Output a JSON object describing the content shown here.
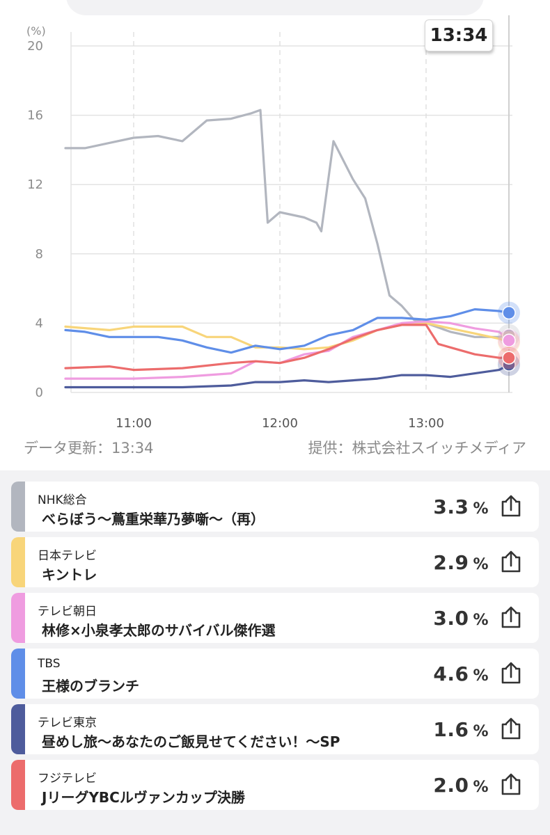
{
  "badge_time": "13:34",
  "footer": {
    "updated": "データ更新：13:34",
    "provider": "提供：株式会社スイッチメディア"
  },
  "chart_data": {
    "type": "line",
    "yunit": "(%)",
    "ylim": [
      0,
      20
    ],
    "yticks": [
      "0",
      "4",
      "8",
      "12",
      "16",
      "20"
    ],
    "xticks": [
      "11:00",
      "12:00",
      "13:00"
    ],
    "grid": true,
    "series": [
      {
        "name": "NHK総合",
        "color": "#b2b6bf",
        "x": [
          "10:32",
          "10:40",
          "10:50",
          "11:00",
          "11:10",
          "11:20",
          "11:30",
          "11:40",
          "11:48",
          "11:52",
          "11:55",
          "12:00",
          "12:10",
          "12:15",
          "12:17",
          "12:22",
          "12:30",
          "12:35",
          "12:40",
          "12:45",
          "12:50",
          "12:55",
          "13:00",
          "13:10",
          "13:20",
          "13:30",
          "13:34"
        ],
        "y": [
          14.1,
          14.1,
          14.4,
          14.7,
          14.8,
          14.5,
          15.7,
          15.8,
          16.1,
          16.3,
          9.8,
          10.4,
          10.1,
          9.8,
          9.3,
          14.5,
          12.3,
          11.2,
          8.6,
          5.6,
          5.0,
          4.2,
          4.0,
          3.5,
          3.2,
          3.2,
          3.3
        ]
      },
      {
        "name": "日本テレビ",
        "color": "#f8d57a",
        "x": [
          "10:32",
          "10:50",
          "11:00",
          "11:10",
          "11:20",
          "11:30",
          "11:40",
          "11:50",
          "12:00",
          "12:10",
          "12:20",
          "12:30",
          "12:40",
          "12:50",
          "13:00",
          "13:10",
          "13:20",
          "13:30",
          "13:34"
        ],
        "y": [
          3.8,
          3.6,
          3.8,
          3.8,
          3.8,
          3.2,
          3.2,
          2.6,
          2.6,
          2.5,
          2.6,
          3.0,
          3.6,
          3.9,
          4.0,
          3.7,
          3.4,
          3.1,
          2.9
        ]
      },
      {
        "name": "テレビ朝日",
        "color": "#ef9ce0",
        "x": [
          "10:32",
          "10:50",
          "11:00",
          "11:20",
          "11:40",
          "11:50",
          "12:00",
          "12:10",
          "12:20",
          "12:30",
          "12:40",
          "12:50",
          "13:00",
          "13:10",
          "13:20",
          "13:30",
          "13:34"
        ],
        "y": [
          0.8,
          0.8,
          0.8,
          0.9,
          1.1,
          1.8,
          1.7,
          2.2,
          2.4,
          3.2,
          3.6,
          4.0,
          4.1,
          4.0,
          3.7,
          3.5,
          3.0
        ]
      },
      {
        "name": "TBS",
        "color": "#5f8ee8",
        "x": [
          "10:32",
          "10:40",
          "10:50",
          "11:00",
          "11:10",
          "11:20",
          "11:30",
          "11:40",
          "11:50",
          "12:00",
          "12:10",
          "12:20",
          "12:30",
          "12:40",
          "12:50",
          "13:00",
          "13:10",
          "13:20",
          "13:30",
          "13:34"
        ],
        "y": [
          3.6,
          3.5,
          3.2,
          3.2,
          3.2,
          3.0,
          2.6,
          2.3,
          2.7,
          2.5,
          2.7,
          3.3,
          3.6,
          4.3,
          4.3,
          4.2,
          4.4,
          4.8,
          4.7,
          4.6
        ]
      },
      {
        "name": "テレビ東京",
        "color": "#4e5c9c",
        "x": [
          "10:32",
          "10:50",
          "11:00",
          "11:20",
          "11:40",
          "11:50",
          "12:00",
          "12:10",
          "12:20",
          "12:30",
          "12:40",
          "12:50",
          "13:00",
          "13:10",
          "13:20",
          "13:30",
          "13:34"
        ],
        "y": [
          0.3,
          0.3,
          0.3,
          0.3,
          0.4,
          0.6,
          0.6,
          0.7,
          0.6,
          0.7,
          0.8,
          1.0,
          1.0,
          0.9,
          1.1,
          1.3,
          1.6
        ]
      },
      {
        "name": "フジテレビ",
        "color": "#ec6c6c",
        "x": [
          "10:32",
          "10:50",
          "11:00",
          "11:20",
          "11:40",
          "11:50",
          "12:00",
          "12:10",
          "12:20",
          "12:30",
          "12:40",
          "12:50",
          "13:00",
          "13:05",
          "13:10",
          "13:20",
          "13:30",
          "13:34"
        ],
        "y": [
          1.4,
          1.5,
          1.3,
          1.4,
          1.7,
          1.8,
          1.7,
          2.0,
          2.5,
          3.1,
          3.6,
          3.9,
          3.9,
          2.8,
          2.6,
          2.2,
          2.0,
          2.0
        ]
      }
    ]
  },
  "list": [
    {
      "channel": "NHK総合",
      "program": "べらぼう～蔦重栄華乃夢噺～（再）",
      "value": "3.3",
      "unit": "%",
      "color": "#b2b6bf"
    },
    {
      "channel": "日本テレビ",
      "program": "キントレ",
      "value": "2.9",
      "unit": "%",
      "color": "#f8d57a"
    },
    {
      "channel": "テレビ朝日",
      "program": "林修×小泉孝太郎のサバイバル傑作選",
      "value": "3.0",
      "unit": "%",
      "color": "#ef9ce0"
    },
    {
      "channel": "TBS",
      "program": "王様のブランチ",
      "value": "4.6",
      "unit": "%",
      "color": "#5f8ee8"
    },
    {
      "channel": "テレビ東京",
      "program": "昼めし旅～あなたのご飯見せてください！～SP",
      "value": "1.6",
      "unit": "%",
      "color": "#4e5c9c"
    },
    {
      "channel": "フジテレビ",
      "program": "JリーグYBCルヴァンカップ決勝",
      "value": "2.0",
      "unit": "%",
      "color": "#ec6c6c"
    }
  ]
}
